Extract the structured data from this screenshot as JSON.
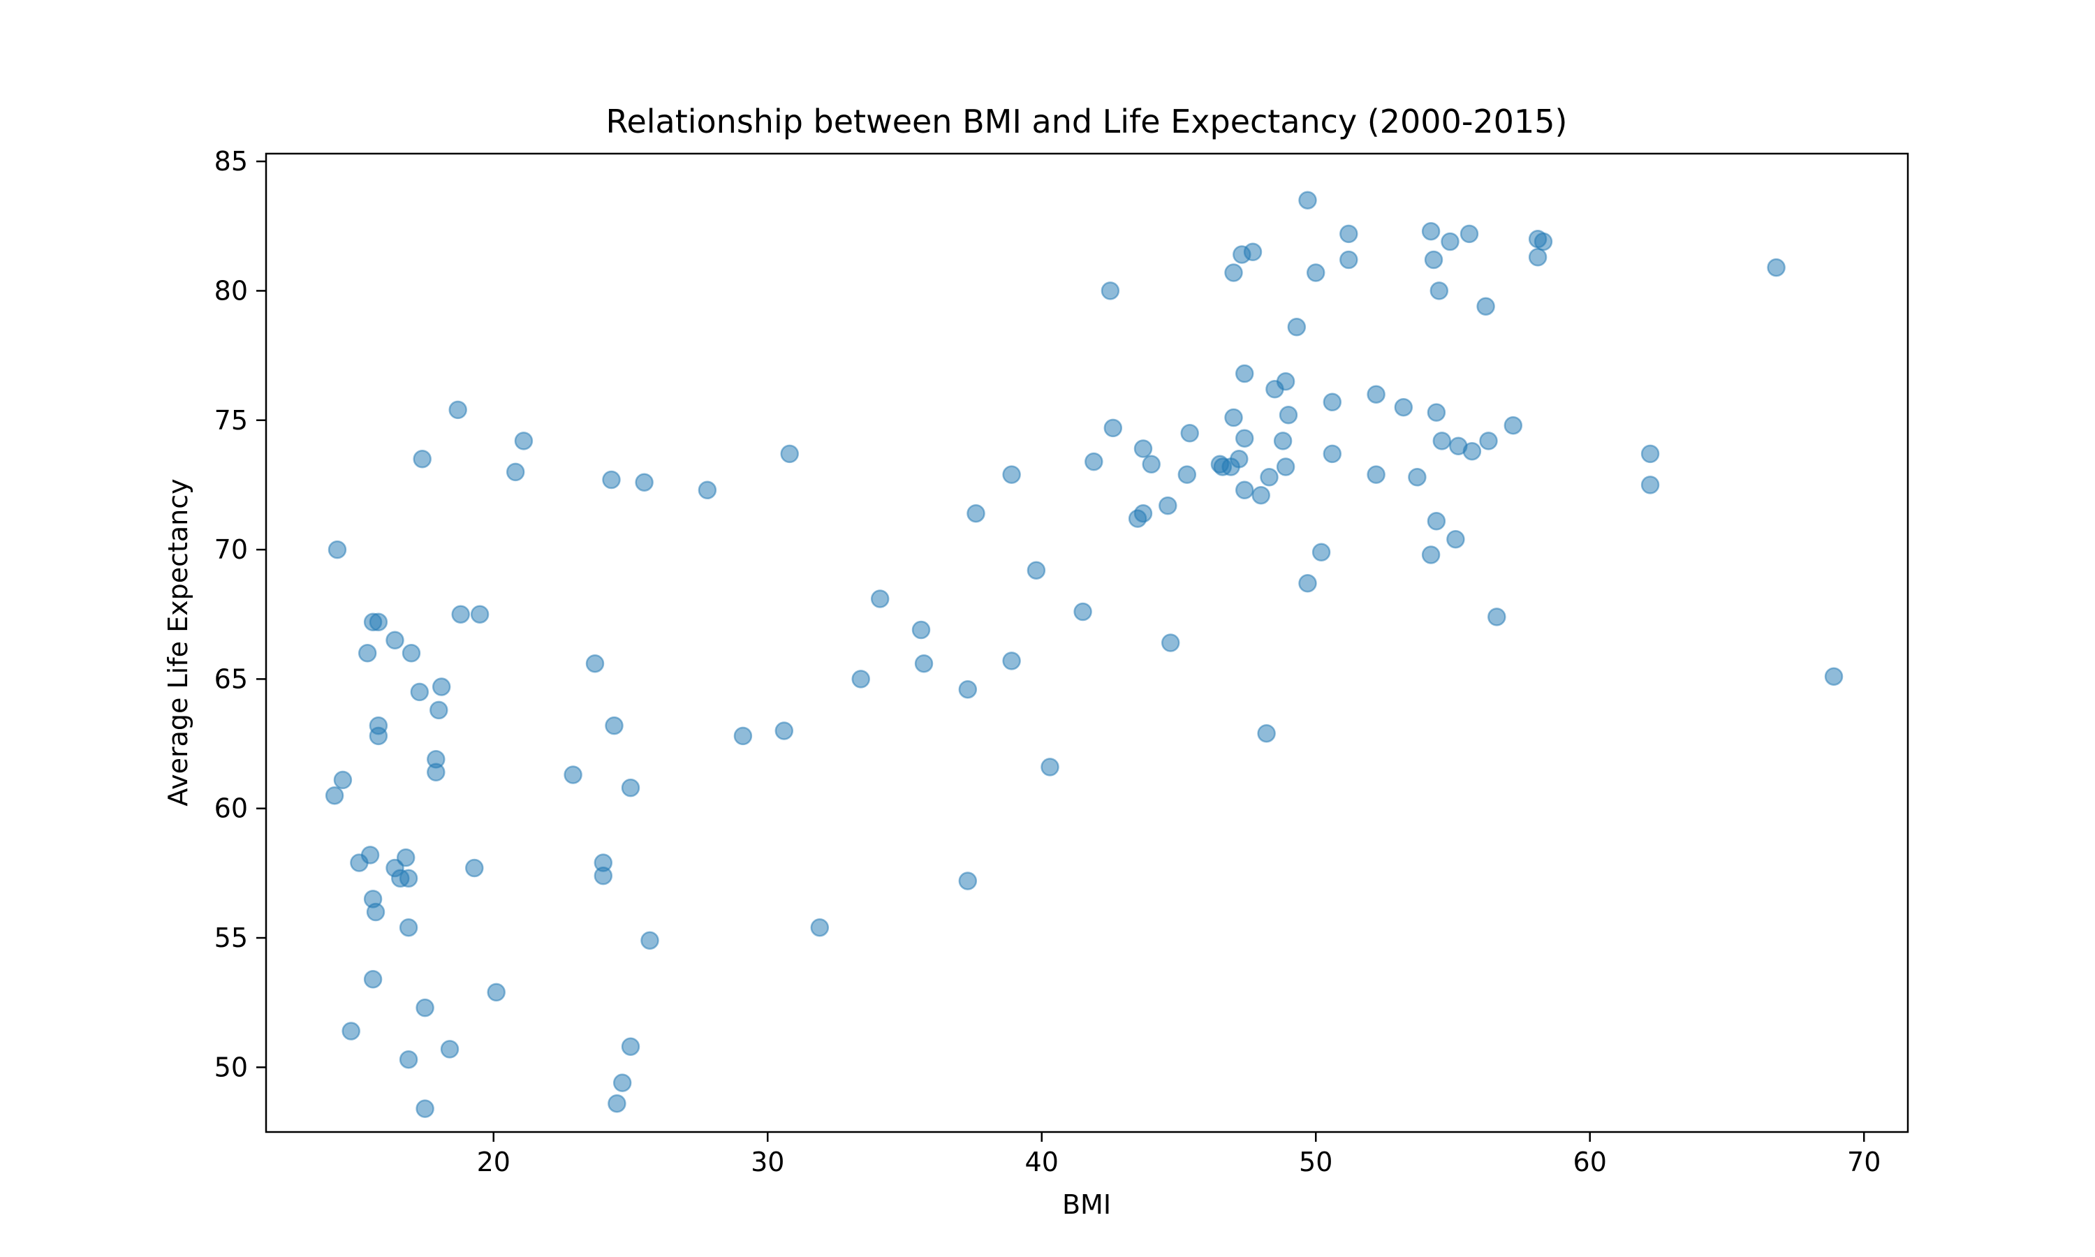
{
  "chart_data": {
    "type": "scatter",
    "title": "Relationship between BMI and Life Expectancy (2000-2015)",
    "xlabel": "BMI",
    "ylabel": "Average Life Expectancy",
    "xlim": [
      11.7,
      71.6
    ],
    "ylim": [
      47.5,
      85.3
    ],
    "xticks": [
      20,
      30,
      40,
      50,
      60,
      70
    ],
    "yticks": [
      50,
      55,
      60,
      65,
      70,
      75,
      80,
      85
    ],
    "grid": false,
    "legend": "none",
    "marker_color": "#1f77b4",
    "marker_alpha": 0.5,
    "series": [
      {
        "points": [
          [
            14.3,
            70.0
          ],
          [
            14.2,
            60.5
          ],
          [
            14.5,
            61.1
          ],
          [
            14.8,
            51.4
          ],
          [
            15.1,
            57.9
          ],
          [
            15.4,
            66.0
          ],
          [
            15.5,
            58.2
          ],
          [
            15.6,
            67.2
          ],
          [
            15.8,
            67.2
          ],
          [
            15.6,
            56.5
          ],
          [
            15.7,
            56.0
          ],
          [
            15.6,
            53.4
          ],
          [
            15.8,
            63.2
          ],
          [
            15.8,
            62.8
          ],
          [
            16.4,
            66.5
          ],
          [
            16.4,
            57.7
          ],
          [
            16.6,
            57.3
          ],
          [
            16.8,
            58.1
          ],
          [
            16.9,
            57.3
          ],
          [
            16.9,
            55.4
          ],
          [
            16.9,
            50.3
          ],
          [
            17.0,
            66.0
          ],
          [
            17.3,
            64.5
          ],
          [
            17.4,
            73.5
          ],
          [
            17.5,
            52.3
          ],
          [
            17.5,
            48.4
          ],
          [
            17.9,
            61.9
          ],
          [
            17.9,
            61.4
          ],
          [
            18.0,
            63.8
          ],
          [
            18.1,
            64.7
          ],
          [
            18.4,
            50.7
          ],
          [
            18.7,
            75.4
          ],
          [
            18.8,
            67.5
          ],
          [
            19.3,
            57.7
          ],
          [
            19.5,
            67.5
          ],
          [
            20.1,
            52.9
          ],
          [
            20.8,
            73.0
          ],
          [
            21.1,
            74.2
          ],
          [
            22.9,
            61.3
          ],
          [
            23.7,
            65.6
          ],
          [
            24.0,
            57.9
          ],
          [
            24.0,
            57.4
          ],
          [
            24.3,
            72.7
          ],
          [
            24.4,
            63.2
          ],
          [
            24.5,
            48.6
          ],
          [
            24.7,
            49.4
          ],
          [
            25.0,
            60.8
          ],
          [
            25.0,
            50.8
          ],
          [
            25.5,
            72.6
          ],
          [
            25.7,
            54.9
          ],
          [
            27.8,
            72.3
          ],
          [
            29.1,
            62.8
          ],
          [
            30.6,
            63.0
          ],
          [
            30.8,
            73.7
          ],
          [
            31.9,
            55.4
          ],
          [
            33.4,
            65.0
          ],
          [
            34.1,
            68.1
          ],
          [
            35.6,
            66.9
          ],
          [
            35.7,
            65.6
          ],
          [
            37.3,
            64.6
          ],
          [
            37.3,
            57.2
          ],
          [
            37.6,
            71.4
          ],
          [
            38.9,
            72.9
          ],
          [
            38.9,
            65.7
          ],
          [
            39.8,
            69.2
          ],
          [
            40.3,
            61.6
          ],
          [
            41.5,
            67.6
          ],
          [
            41.9,
            73.4
          ],
          [
            42.5,
            80.0
          ],
          [
            42.6,
            74.7
          ],
          [
            43.5,
            71.2
          ],
          [
            43.7,
            73.9
          ],
          [
            43.7,
            71.4
          ],
          [
            44.0,
            73.3
          ],
          [
            44.6,
            71.7
          ],
          [
            44.7,
            66.4
          ],
          [
            45.3,
            72.9
          ],
          [
            45.4,
            74.5
          ],
          [
            46.5,
            73.3
          ],
          [
            46.6,
            73.2
          ],
          [
            46.9,
            73.2
          ],
          [
            47.0,
            80.7
          ],
          [
            47.0,
            75.1
          ],
          [
            47.2,
            73.5
          ],
          [
            47.3,
            81.4
          ],
          [
            47.4,
            76.8
          ],
          [
            47.4,
            74.3
          ],
          [
            47.4,
            72.3
          ],
          [
            47.7,
            81.5
          ],
          [
            48.0,
            72.1
          ],
          [
            48.2,
            62.9
          ],
          [
            48.3,
            72.8
          ],
          [
            48.5,
            76.2
          ],
          [
            48.8,
            74.2
          ],
          [
            48.9,
            76.5
          ],
          [
            48.9,
            73.2
          ],
          [
            49.0,
            75.2
          ],
          [
            49.3,
            78.6
          ],
          [
            49.7,
            83.5
          ],
          [
            49.7,
            68.7
          ],
          [
            50.0,
            80.7
          ],
          [
            50.2,
            69.9
          ],
          [
            50.6,
            75.7
          ],
          [
            50.6,
            73.7
          ],
          [
            51.2,
            82.2
          ],
          [
            51.2,
            81.2
          ],
          [
            52.2,
            76.0
          ],
          [
            52.2,
            72.9
          ],
          [
            53.2,
            75.5
          ],
          [
            53.7,
            72.8
          ],
          [
            54.2,
            82.3
          ],
          [
            54.3,
            81.2
          ],
          [
            54.2,
            69.8
          ],
          [
            54.4,
            75.3
          ],
          [
            54.4,
            71.1
          ],
          [
            54.5,
            80.0
          ],
          [
            54.6,
            74.2
          ],
          [
            54.9,
            81.9
          ],
          [
            55.1,
            70.4
          ],
          [
            55.2,
            74.0
          ],
          [
            55.6,
            82.2
          ],
          [
            55.7,
            73.8
          ],
          [
            56.2,
            79.4
          ],
          [
            56.3,
            74.2
          ],
          [
            56.6,
            67.4
          ],
          [
            57.2,
            74.8
          ],
          [
            58.1,
            82.0
          ],
          [
            58.1,
            81.3
          ],
          [
            58.3,
            81.9
          ],
          [
            62.2,
            73.7
          ],
          [
            62.2,
            72.5
          ],
          [
            66.8,
            80.9
          ],
          [
            68.9,
            65.1
          ]
        ]
      }
    ]
  }
}
